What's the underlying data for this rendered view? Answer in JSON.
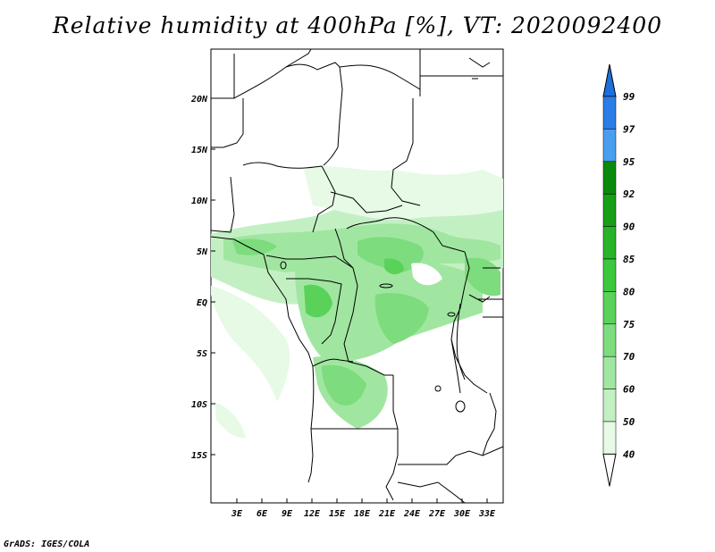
{
  "title": "Relative humidity at 400hPa [%], VT: 2020092400",
  "footer": "GrADS: IGES/COLA",
  "map": {
    "lat_ticks": [
      "20N",
      "15N",
      "10N",
      "5N",
      "EQ",
      "5S",
      "10S",
      "15S"
    ],
    "lon_ticks": [
      "3E",
      "6E",
      "9E",
      "12E",
      "15E",
      "18E",
      "21E",
      "24E",
      "27E",
      "30E",
      "33E"
    ]
  },
  "colorbar": {
    "levels": [
      {
        "label": "99",
        "color": "#1e6fd9"
      },
      {
        "label": "97",
        "color": "#2a7ce6"
      },
      {
        "label": "95",
        "color": "#4a9ef0"
      },
      {
        "label": "92",
        "color": "#0a8a0a"
      },
      {
        "label": "90",
        "color": "#16a016"
      },
      {
        "label": "85",
        "color": "#28b428"
      },
      {
        "label": "80",
        "color": "#3cc83c"
      },
      {
        "label": "75",
        "color": "#5ad25a"
      },
      {
        "label": "70",
        "color": "#7ddc7d"
      },
      {
        "label": "60",
        "color": "#a0e6a0"
      },
      {
        "label": "50",
        "color": "#c3f0c3"
      },
      {
        "label": "40",
        "color": "#e6fae6"
      }
    ]
  }
}
